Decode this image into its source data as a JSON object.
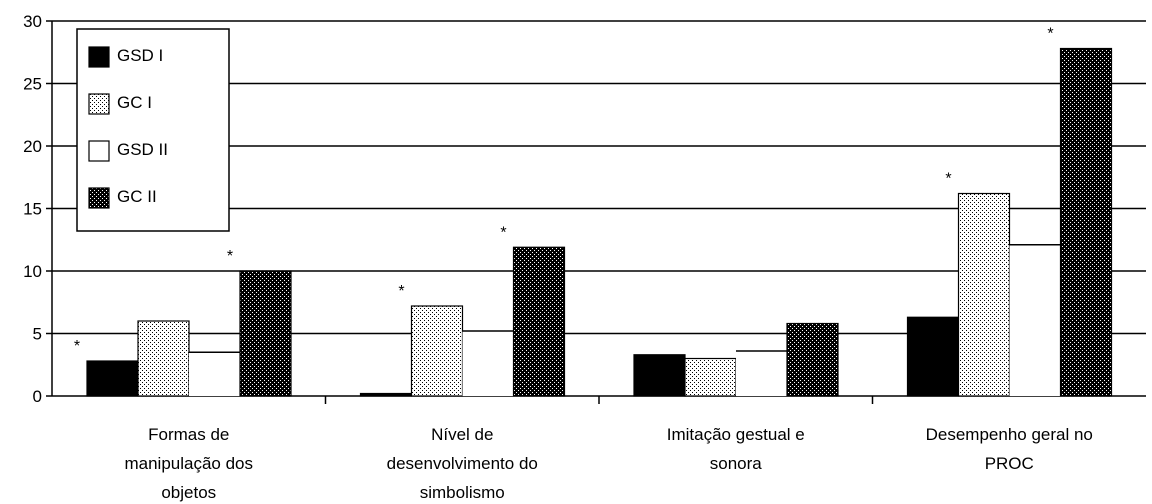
{
  "chart_data": {
    "type": "bar",
    "categories": [
      [
        "Formas de",
        "manipulação dos",
        "objetos"
      ],
      [
        "Nível de",
        "desenvolvimento do",
        "simbolismo"
      ],
      [
        "Imitação gestual e",
        "sonora"
      ],
      [
        "Desempenho geral no",
        "PROC"
      ]
    ],
    "series": [
      {
        "name": "GSD I",
        "pattern": "solid-black",
        "values": [
          2.8,
          0.2,
          3.3,
          6.3
        ]
      },
      {
        "name": "GC I",
        "pattern": "light-dots",
        "values": [
          6.0,
          7.2,
          3.0,
          16.2
        ]
      },
      {
        "name": "GSD II",
        "pattern": "white",
        "values": [
          3.5,
          5.2,
          3.6,
          12.1
        ]
      },
      {
        "name": "GC II",
        "pattern": "dense-dots",
        "values": [
          10.0,
          11.9,
          5.8,
          27.8
        ]
      }
    ],
    "significance": [
      {
        "category": 0,
        "series": 0,
        "label": "*"
      },
      {
        "category": 0,
        "series": 3,
        "label": "*"
      },
      {
        "category": 1,
        "series": 1,
        "label": "*"
      },
      {
        "category": 1,
        "series": 3,
        "label": "*"
      },
      {
        "category": 3,
        "series": 1,
        "label": "*"
      },
      {
        "category": 3,
        "series": 3,
        "label": "*"
      }
    ],
    "ylim": [
      0,
      30
    ],
    "yticks": [
      0,
      5,
      10,
      15,
      20,
      25,
      30
    ],
    "grid": "horizontal",
    "legend": "top-left",
    "title": "",
    "xlabel": "",
    "ylabel": ""
  }
}
